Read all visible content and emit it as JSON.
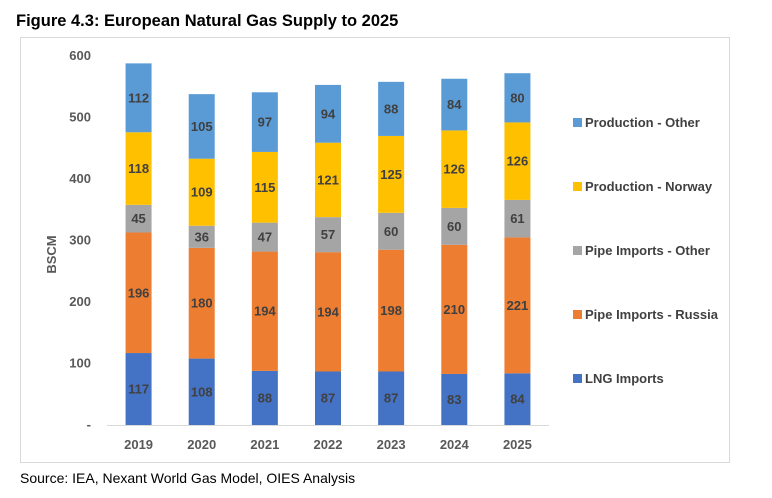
{
  "figure_title": "Figure 4.3: European Natural Gas Supply to 2025",
  "source_note": "Source: IEA, Nexant World Gas Model, OIES Analysis",
  "chart_data": {
    "type": "bar",
    "stacked": true,
    "categories": [
      "2019",
      "2020",
      "2021",
      "2022",
      "2023",
      "2024",
      "2025"
    ],
    "series": [
      {
        "name": "LNG Imports",
        "color": "#4472C4",
        "values": [
          117,
          108,
          88,
          87,
          87,
          83,
          84
        ]
      },
      {
        "name": "Pipe Imports - Russia",
        "color": "#ED7D31",
        "values": [
          196,
          180,
          194,
          194,
          198,
          210,
          221
        ]
      },
      {
        "name": "Pipe Imports - Other",
        "color": "#A5A5A5",
        "values": [
          45,
          36,
          47,
          57,
          60,
          60,
          61
        ]
      },
      {
        "name": "Production - Norway",
        "color": "#FFC000",
        "values": [
          118,
          109,
          115,
          121,
          125,
          126,
          126
        ]
      },
      {
        "name": "Production - Other",
        "color": "#5B9BD5",
        "values": [
          112,
          105,
          97,
          94,
          88,
          84,
          80
        ]
      }
    ],
    "ylabel": "BSCM",
    "yticks": [
      "-",
      "100",
      "200",
      "300",
      "400",
      "500",
      "600"
    ],
    "ylim": [
      0,
      600
    ],
    "legend_position": "right"
  }
}
